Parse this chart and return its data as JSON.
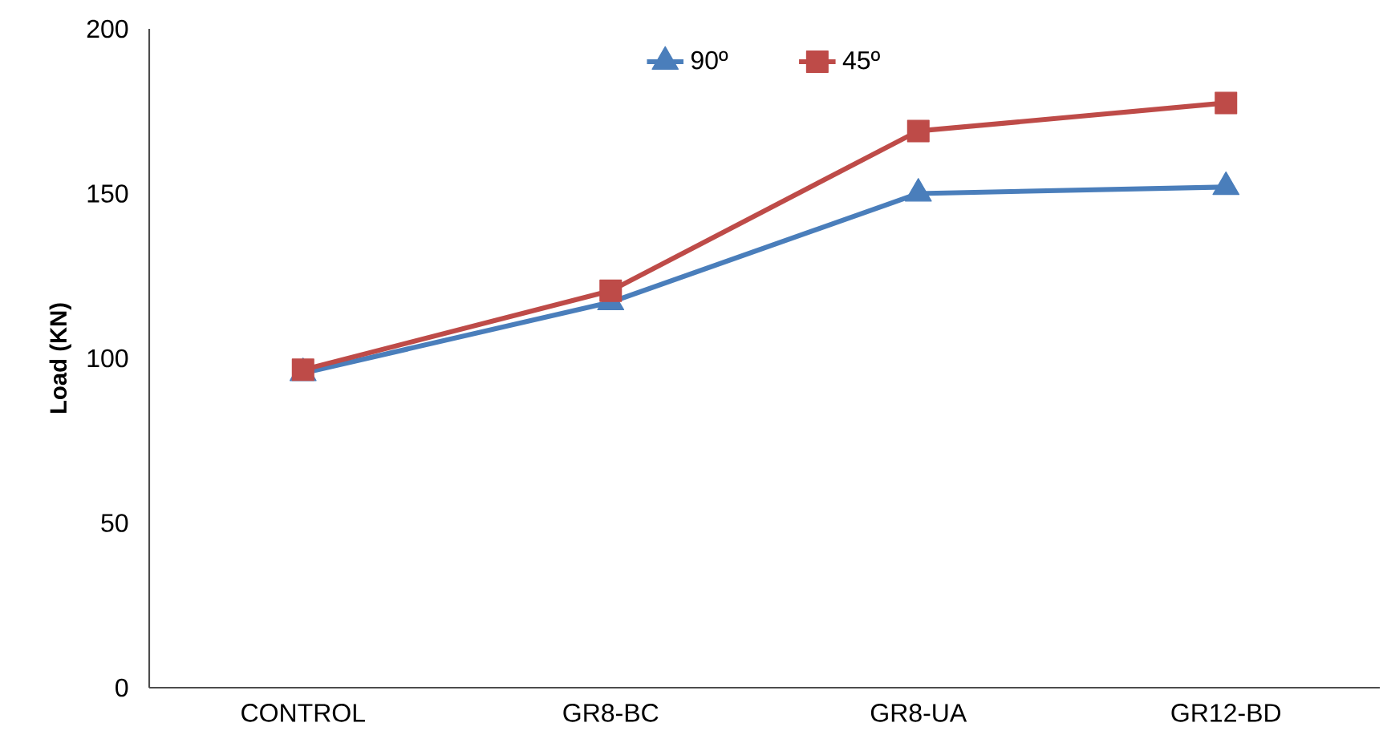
{
  "chart_data": {
    "type": "line",
    "ylabel": "Load (KN)",
    "categories": [
      "CONTROL",
      "GR8-BC",
      "GR8-UA",
      "GR12-BD"
    ],
    "series": [
      {
        "name": "90º",
        "color": "#4a7ebb",
        "marker": "triangle",
        "values": [
          95.5,
          117,
          150,
          152
        ]
      },
      {
        "name": "45º",
        "color": "#be4b48",
        "marker": "square",
        "values": [
          96.5,
          120.5,
          169,
          177.5
        ]
      }
    ],
    "ylim": [
      0,
      200
    ],
    "yticks": [
      0,
      50,
      100,
      150,
      200
    ],
    "legend": "top",
    "grid": false
  }
}
